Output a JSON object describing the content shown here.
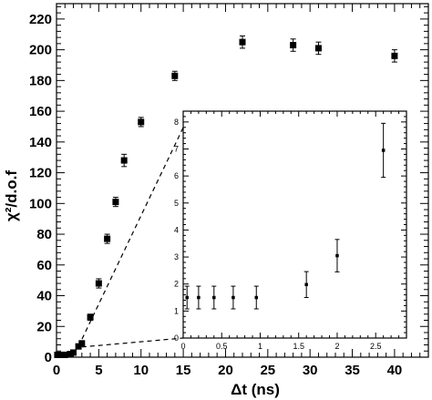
{
  "chart_data": [
    {
      "type": "scatter",
      "role": "main",
      "xlabel": "Δt (ns)",
      "ylabel": "χ²/d.o.f",
      "xlim": [
        0,
        44
      ],
      "ylim": [
        0,
        230
      ],
      "xticks": [
        0,
        5,
        10,
        15,
        20,
        25,
        30,
        35,
        40
      ],
      "yticks": [
        0,
        20,
        40,
        60,
        80,
        100,
        120,
        140,
        160,
        180,
        200,
        220
      ],
      "grid": false,
      "legend": "none",
      "marker": "filled-square",
      "error_bars": true,
      "series": [
        {
          "x": [
            0.1,
            0.2,
            0.4,
            0.7,
            1.0,
            1.6,
            2.0,
            2.6,
            3.0,
            4.0,
            5.0,
            6.0,
            7.0,
            8.0,
            10.0,
            14.0,
            22.0,
            28.0,
            31.0,
            40.0
          ],
          "y": [
            1.5,
            1.5,
            1.5,
            1.5,
            1.5,
            2.0,
            3.0,
            7.0,
            9.0,
            26.0,
            48.0,
            77.0,
            101.0,
            128.0,
            153.0,
            183.0,
            205.0,
            203.0,
            201.0,
            196.0
          ],
          "err": [
            0.4,
            0.4,
            0.4,
            0.4,
            0.4,
            0.5,
            0.6,
            1.0,
            1.5,
            2.0,
            3.0,
            3.0,
            3.0,
            4.0,
            3.0,
            3.0,
            4.0,
            4.0,
            4.0,
            4.0
          ]
        }
      ]
    },
    {
      "type": "scatter",
      "role": "inset",
      "xlim": [
        0,
        2.9
      ],
      "ylim": [
        0,
        8.4
      ],
      "xticks": [
        0,
        0.5,
        1,
        1.5,
        2,
        2.5
      ],
      "yticks": [
        0,
        1,
        2,
        3,
        4,
        5,
        6,
        7,
        8
      ],
      "grid": false,
      "legend": "none",
      "marker": "filled-square",
      "error_bars": true,
      "series": [
        {
          "x": [
            0.05,
            0.2,
            0.4,
            0.65,
            0.95,
            1.6,
            2.0,
            2.6
          ],
          "y": [
            1.5,
            1.5,
            1.5,
            1.5,
            1.5,
            1.98,
            3.05,
            6.95
          ],
          "err": [
            0.42,
            0.42,
            0.42,
            0.42,
            0.42,
            0.48,
            0.6,
            1.0
          ]
        }
      ]
    }
  ]
}
